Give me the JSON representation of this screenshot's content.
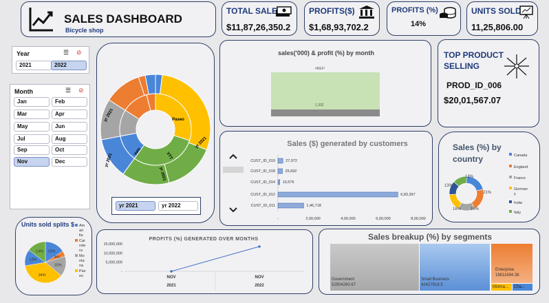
{
  "header": {
    "title": "SALES DASHBOARD",
    "subtitle": "Bicycle shop"
  },
  "kpis": {
    "total_sales": {
      "label": "TOTAL SALES",
      "value": "$11,87,26,350.2"
    },
    "profits": {
      "label": "PROFITS($)",
      "value": "$1,68,93,702.2"
    },
    "profits_pct": {
      "label": "PROFITS (%)",
      "value": "14%"
    },
    "units_sold": {
      "label": "UNITS SOLD",
      "value": "11,25,806.00"
    }
  },
  "year_slicer": {
    "title": "Year",
    "items": [
      "2021",
      "2022"
    ],
    "selected": "2022"
  },
  "month_slicer": {
    "title": "Month",
    "items": [
      "Jan",
      "Feb",
      "Mar",
      "Apr",
      "May",
      "Jun",
      "Jul",
      "Aug",
      "Sep",
      "Oct",
      "Nov",
      "Dec"
    ],
    "selected": "Nov"
  },
  "sunburst": {
    "inner": [
      "Paseo",
      "VTT",
      "Velo",
      "yr 2021"
    ],
    "outer": [
      "yr 2021",
      "yr 2021",
      "yr 2021",
      "yr 2021"
    ],
    "legend": [
      "yr 2021",
      "yr 2022"
    ]
  },
  "monthly": {
    "title": "sales('000) & profit (%) by month",
    "bar_label": "#REF!",
    "value_label": "1,302"
  },
  "top_product": {
    "title_line1": "TOP PRODUCT",
    "title_line2": "SELLING",
    "product": "PROD_ID_006",
    "amount": "$20,01,567.07"
  },
  "colors": {
    "blue": "#4a86d8",
    "orange": "#ed7d31",
    "gray": "#a5a5a5",
    "yellow": "#ffc000",
    "green": "#70ad47",
    "navy": "#2c3e66",
    "accent": "#1e3a7a"
  },
  "chart_data": [
    {
      "type": "bar",
      "title": "Sales ($) generated by customers",
      "orientation": "horizontal",
      "categories": [
        "CUST_ID_019",
        "CUST_ID_018",
        "CUST_ID_014",
        "CUST_ID_012",
        "CUST_ID_011"
      ],
      "values": [
        27972,
        25692,
        10576,
        683397,
        146718
      ],
      "value_labels": [
        "27,972",
        "25,692",
        "10,576",
        "6,83,397",
        "1,46,718"
      ],
      "xticks": [
        "-",
        "2,00,000",
        "4,00,000",
        "6,00,000",
        "8,00,000"
      ],
      "xlim": [
        0,
        800000
      ]
    },
    {
      "type": "pie",
      "title": "Sales (%) by country",
      "style": "donut",
      "categories": [
        "Canada",
        "England",
        "France",
        "Germany",
        "India",
        "Italy"
      ],
      "values": [
        21,
        21,
        16,
        16,
        13,
        13
      ],
      "value_labels": [
        "21%",
        "",
        "16%",
        "16%",
        "13%",
        "13%"
      ]
    },
    {
      "type": "pie",
      "title": "Units sold splits $",
      "categories": [
        "Amarilla",
        "Carretera",
        "Montana",
        "Paseo",
        "VTT",
        "Velo"
      ],
      "legend_labels": [
        "Am ari lla",
        "Car rete ra",
        "Mo nta na",
        "Pas eo"
      ],
      "values": [
        15,
        4,
        15,
        34,
        12,
        14
      ],
      "value_labels": [
        "15%",
        "4%",
        "15%",
        "34%",
        "12%",
        "14%"
      ]
    },
    {
      "type": "line",
      "title": "PROFITS (%) GENERATED OVER MONTHS",
      "x": [
        "NOV 2021",
        "NOV 2022"
      ],
      "xlabels_top": [
        "NOV",
        "NOV"
      ],
      "xlabels_bottom": [
        "2021",
        "2022"
      ],
      "values": [
        0,
        13500000
      ],
      "yticks": [
        "15,000,000",
        "10,000,000",
        "5,000,000",
        "-"
      ],
      "ylim": [
        0,
        15000000
      ]
    },
    {
      "type": "heatmap",
      "title": "Sales breakup (%) by segments",
      "categories": [
        "Government",
        "Small Business",
        "Enterprise",
        "Midmarket",
        "Channel Partners"
      ],
      "values": [
        52504260.67,
        42427918.5,
        19611694.38,
        0,
        0
      ],
      "display_labels": [
        "Government",
        "Small Business",
        "Enterprise",
        "Midma...",
        "Cha..."
      ],
      "display_values": [
        "52504260.67",
        "42427918.5",
        "19611694.38"
      ]
    }
  ]
}
